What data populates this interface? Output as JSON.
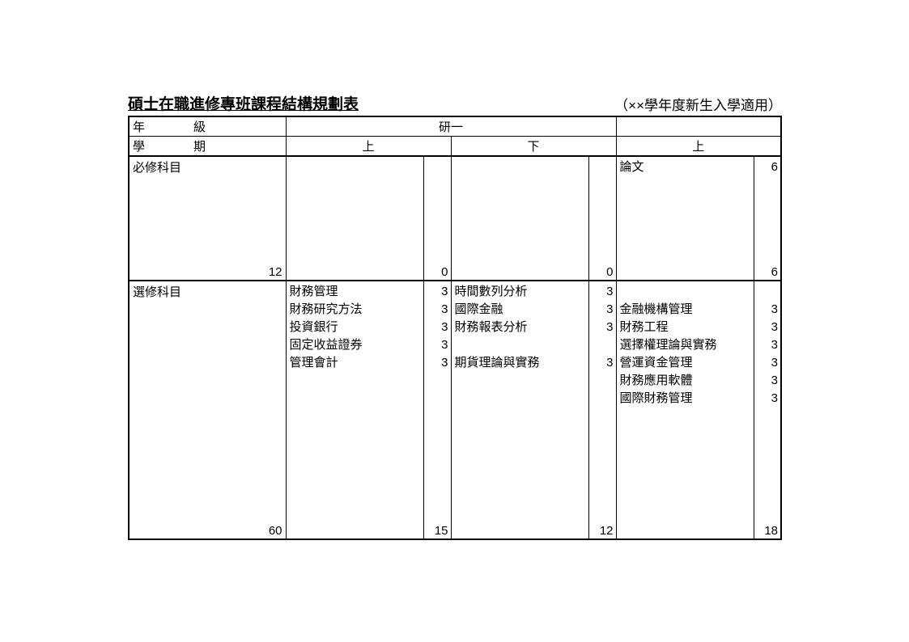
{
  "title": "碩士在職進修專班課程結構規劃表",
  "subtitle": "（××學年度新生入學適用）",
  "headers": {
    "year_label": "年　　　　級",
    "year_value": "研一",
    "sem_label": "學　　　　期",
    "sem1": "上",
    "sem2": "下",
    "sem3": "上"
  },
  "required": {
    "label": "必修科目",
    "col1_total": "12",
    "sem1": {
      "courses": [],
      "subtotal": "0"
    },
    "sem2": {
      "courses": [],
      "subtotal": "0"
    },
    "sem3": {
      "courses": [
        {
          "name": "論文",
          "cred": "6"
        }
      ],
      "subtotal": "6"
    }
  },
  "elective": {
    "label": "選修科目",
    "col1_total": "60",
    "sem1": {
      "courses": [
        {
          "name": "財務管理",
          "cred": "3"
        },
        {
          "name": "財務研究方法",
          "cred": "3"
        },
        {
          "name": "投資銀行",
          "cred": "3"
        },
        {
          "name": "固定收益證券",
          "cred": "3"
        },
        {
          "name": "管理會計",
          "cred": "3"
        }
      ],
      "subtotal": "15"
    },
    "sem2": {
      "courses": [
        {
          "name": "時間數列分析",
          "cred": "3"
        },
        {
          "name": "國際金融",
          "cred": "3"
        },
        {
          "name": "財務報表分析",
          "cred": "3"
        },
        {
          "name": "",
          "cred": ""
        },
        {
          "name": "期貨理論與實務",
          "cred": "3"
        }
      ],
      "subtotal": "12"
    },
    "sem3": {
      "courses": [
        {
          "name": "",
          "cred": ""
        },
        {
          "name": "金融機構管理",
          "cred": "3"
        },
        {
          "name": "財務工程",
          "cred": "3"
        },
        {
          "name": "選擇權理論與實務",
          "cred": "3"
        },
        {
          "name": "營運資金管理",
          "cred": "3"
        },
        {
          "name": "財務應用軟體",
          "cred": "3"
        },
        {
          "name": "國際財務管理",
          "cred": "3"
        }
      ],
      "subtotal": "18"
    }
  }
}
